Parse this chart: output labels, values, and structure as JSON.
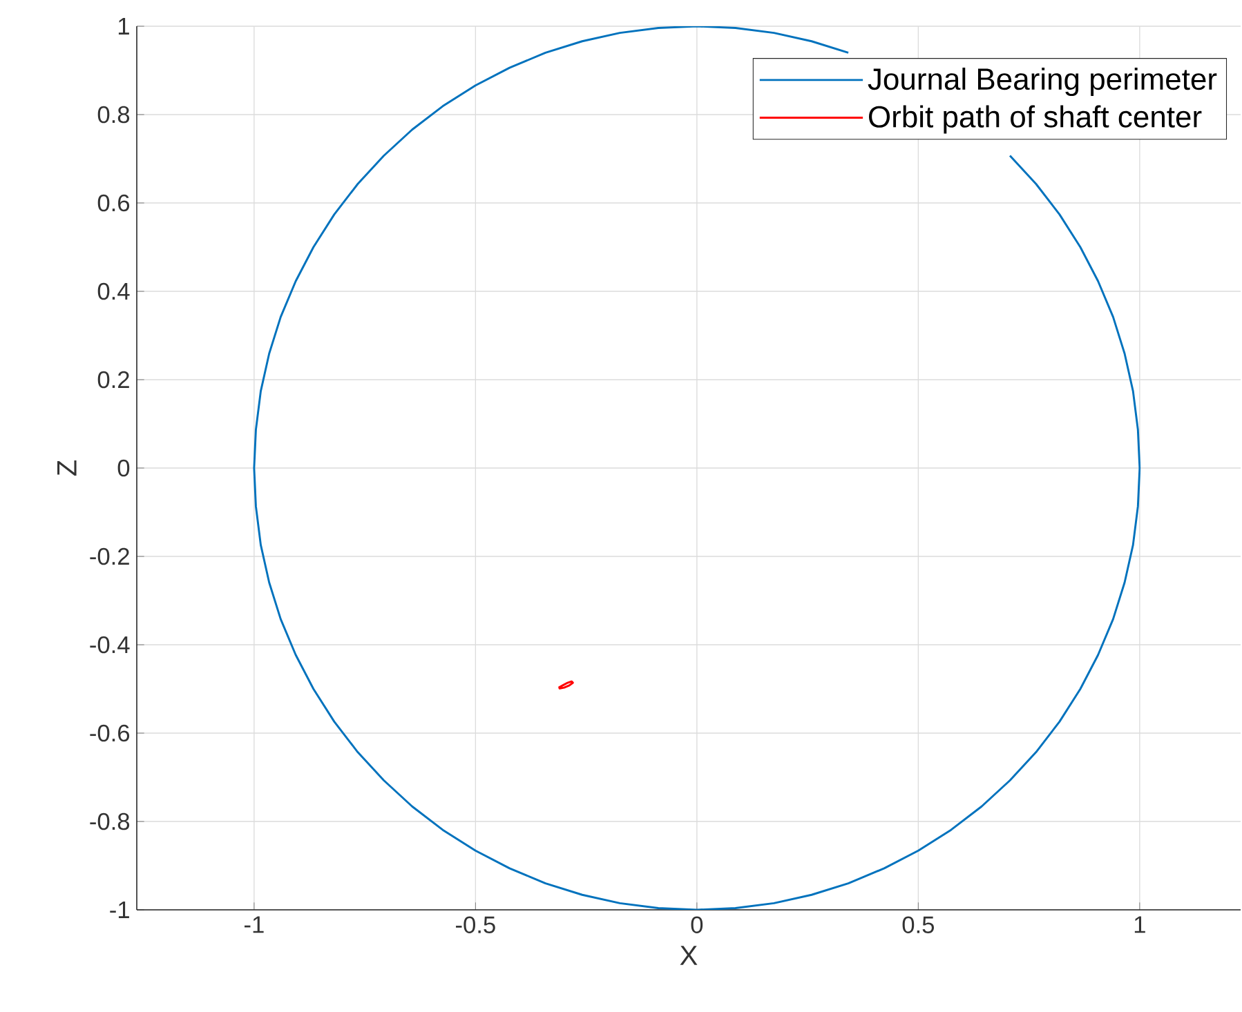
{
  "chart_data": {
    "type": "line",
    "xlabel": "X",
    "ylabel": "Z",
    "xlim": [
      -1.265,
      1.228
    ],
    "ylim": [
      -1,
      1
    ],
    "xticks": [
      -1,
      -0.5,
      0,
      0.5,
      1
    ],
    "yticks": [
      -1,
      -0.8,
      -0.6,
      -0.4,
      -0.2,
      0,
      0.2,
      0.4,
      0.6,
      0.8,
      1
    ],
    "grid": true,
    "legend": "top right",
    "marker": "none",
    "line_style": "solid",
    "series": [
      {
        "name": "Journal Bearing perimeter",
        "color": "#0072bd",
        "x": [
          1,
          0.996,
          0.985,
          0.966,
          0.94,
          0.906,
          0.866,
          0.819,
          0.766,
          0.707,
          0.643,
          0.574,
          0.5,
          0.423,
          0.342,
          0.259,
          0.174,
          0.087,
          0,
          -0.087,
          -0.174,
          -0.259,
          -0.342,
          -0.423,
          -0.5,
          -0.574,
          -0.643,
          -0.707,
          -0.766,
          -0.819,
          -0.866,
          -0.906,
          -0.94,
          -0.966,
          -0.985,
          -0.996,
          -1,
          -0.996,
          -0.985,
          -0.966,
          -0.94,
          -0.906,
          -0.866,
          -0.819,
          -0.766,
          -0.707,
          -0.643,
          -0.574,
          -0.5,
          -0.423,
          -0.342,
          -0.259,
          -0.174,
          -0.087,
          0,
          0.087,
          0.174,
          0.259,
          0.342,
          0.423,
          0.5,
          0.574,
          0.643,
          0.707,
          0.766,
          0.819,
          0.866,
          0.906,
          0.94,
          0.966,
          0.985,
          0.996,
          1
        ],
        "values": [
          0,
          0.087,
          0.174,
          0.259,
          0.342,
          0.423,
          0.5,
          0.574,
          0.643,
          0.707,
          null,
          null,
          null,
          null,
          0.94,
          0.966,
          0.985,
          0.996,
          1,
          0.996,
          0.985,
          0.966,
          0.94,
          0.906,
          0.866,
          0.819,
          0.766,
          0.707,
          0.643,
          0.574,
          0.5,
          0.423,
          0.342,
          0.259,
          0.174,
          0.087,
          0,
          -0.087,
          -0.174,
          -0.259,
          -0.342,
          -0.423,
          -0.5,
          -0.574,
          -0.643,
          -0.707,
          -0.766,
          -0.819,
          -0.866,
          -0.906,
          -0.94,
          -0.966,
          -0.985,
          -0.996,
          -1,
          -0.996,
          -0.985,
          -0.966,
          -0.94,
          -0.906,
          -0.866,
          -0.819,
          -0.766,
          -0.707,
          -0.643,
          -0.574,
          -0.5,
          -0.423,
          -0.342,
          -0.259,
          -0.174,
          -0.087,
          0
        ]
      },
      {
        "name": "Orbit path of shaft center",
        "color": "#ff0000",
        "x": [
          -0.312,
          -0.303,
          -0.292,
          -0.283,
          -0.28,
          -0.288,
          -0.3,
          -0.31,
          -0.311
        ],
        "values": [
          -0.497,
          -0.492,
          -0.486,
          -0.483,
          -0.486,
          -0.492,
          -0.497,
          -0.499,
          -0.495
        ]
      }
    ]
  }
}
